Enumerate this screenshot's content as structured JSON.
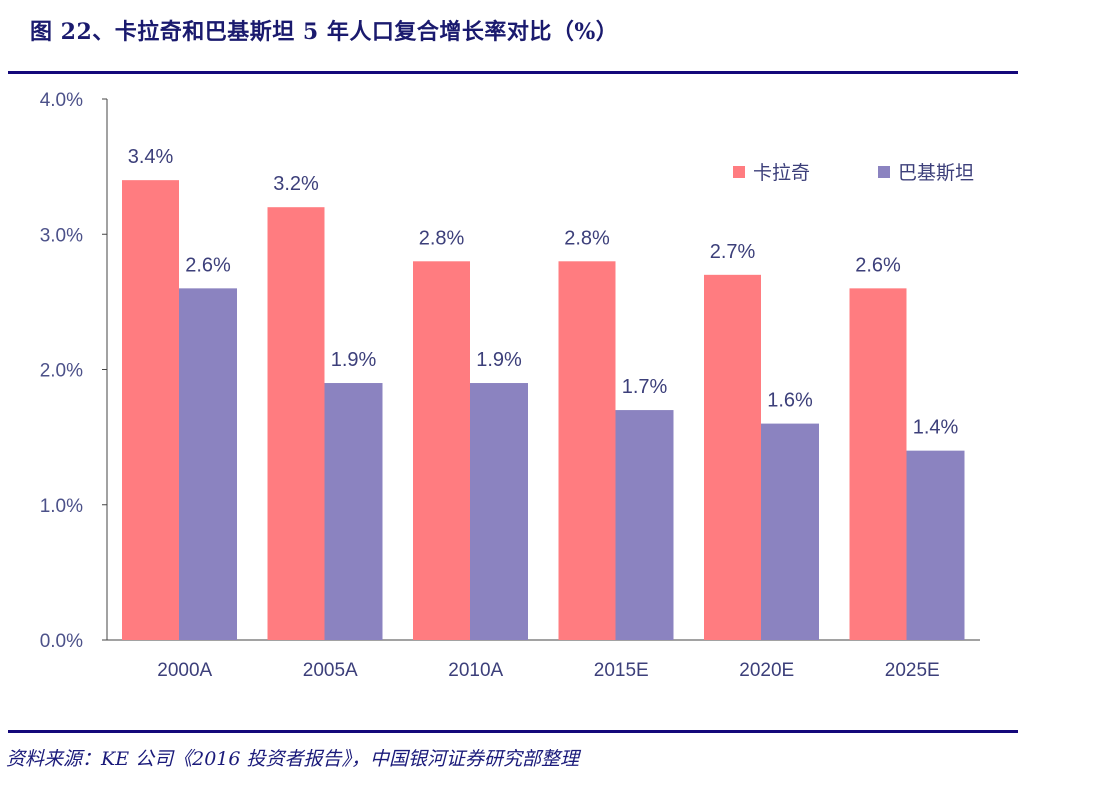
{
  "title": "图 22、卡拉奇和巴基斯坦 5 年人口复合增长率对比（%）",
  "source": "资料来源：KE 公司《2016 投资者报告》，中国银河证券研究部整理",
  "chart_data": {
    "type": "bar",
    "title": "图 22、卡拉奇和巴基斯坦 5 年人口复合增长率对比（%）",
    "categories": [
      "2000A",
      "2005A",
      "2010A",
      "2015E",
      "2020E",
      "2025E"
    ],
    "series": [
      {
        "name": "卡拉奇",
        "color": "#ff7c80",
        "values": [
          3.4,
          3.2,
          2.8,
          2.8,
          2.7,
          2.6
        ],
        "labels": [
          "3.4%",
          "3.2%",
          "2.8%",
          "2.8%",
          "2.7%",
          "2.6%"
        ]
      },
      {
        "name": "巴基斯坦",
        "color": "#8b83c0",
        "values": [
          2.6,
          1.9,
          1.9,
          1.7,
          1.6,
          1.4
        ],
        "labels": [
          "2.6%",
          "1.9%",
          "1.9%",
          "1.7%",
          "1.6%",
          "1.4%"
        ]
      }
    ],
    "ylim": [
      0,
      4
    ],
    "yticks": [
      "0.0%",
      "1.0%",
      "2.0%",
      "3.0%",
      "4.0%"
    ],
    "xlabel": "",
    "ylabel": "",
    "grid": false,
    "legend": "top-right"
  }
}
